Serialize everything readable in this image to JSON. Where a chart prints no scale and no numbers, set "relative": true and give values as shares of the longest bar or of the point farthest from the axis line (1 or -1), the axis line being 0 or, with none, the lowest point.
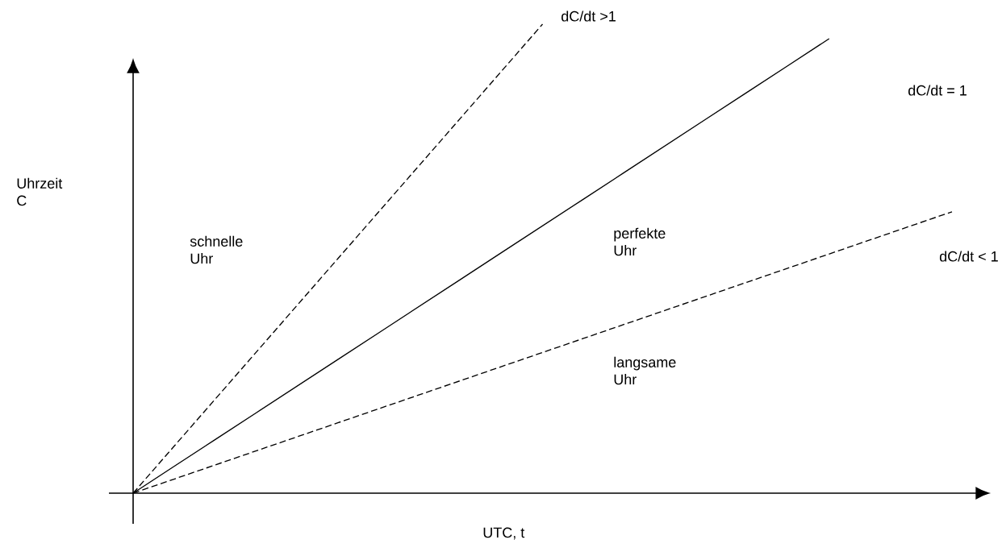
{
  "chart_data": {
    "type": "line",
    "relative": true,
    "xlabel": "UTC, t",
    "ylabel": "Uhrzeit C",
    "categories": [
      null,
      null,
      null,
      null,
      null,
      null,
      null,
      null,
      null,
      null,
      null,
      null,
      null,
      null,
      null,
      null,
      null,
      null,
      null,
      null,
      null
    ],
    "series": [
      {
        "name": "dC/dt >1",
        "color": "#000000",
        "line_style": "dashed",
        "values": [
          0,
          0.1,
          0.2,
          0.3,
          0.4,
          0.5,
          0.6,
          0.7,
          0.8,
          0.9,
          1.0,
          null,
          null,
          null,
          null,
          null,
          null,
          null,
          null,
          null,
          null
        ]
      },
      {
        "name": "dC/dt = 1",
        "color": "#000000",
        "line_style": "solid",
        "values": [
          0,
          0.057,
          0.114,
          0.171,
          0.228,
          0.285,
          0.342,
          0.399,
          0.456,
          0.513,
          0.57,
          0.627,
          0.684,
          0.741,
          0.798,
          0.855,
          0.912,
          0.969,
          null,
          null,
          null
        ]
      },
      {
        "name": "dC/dt < 1",
        "color": "#000000",
        "line_style": "dashed",
        "values": [
          0,
          0.03,
          0.06,
          0.09,
          0.12,
          0.15,
          0.18,
          0.21,
          0.24,
          0.27,
          0.3,
          0.33,
          0.36,
          0.39,
          0.42,
          0.45,
          0.48,
          0.51,
          0.54,
          0.57,
          0.6
        ]
      }
    ],
    "annotations": [
      "schnelle Uhr",
      "perfekte Uhr",
      "langsame Uhr"
    ],
    "marker": "none",
    "legend": false
  }
}
